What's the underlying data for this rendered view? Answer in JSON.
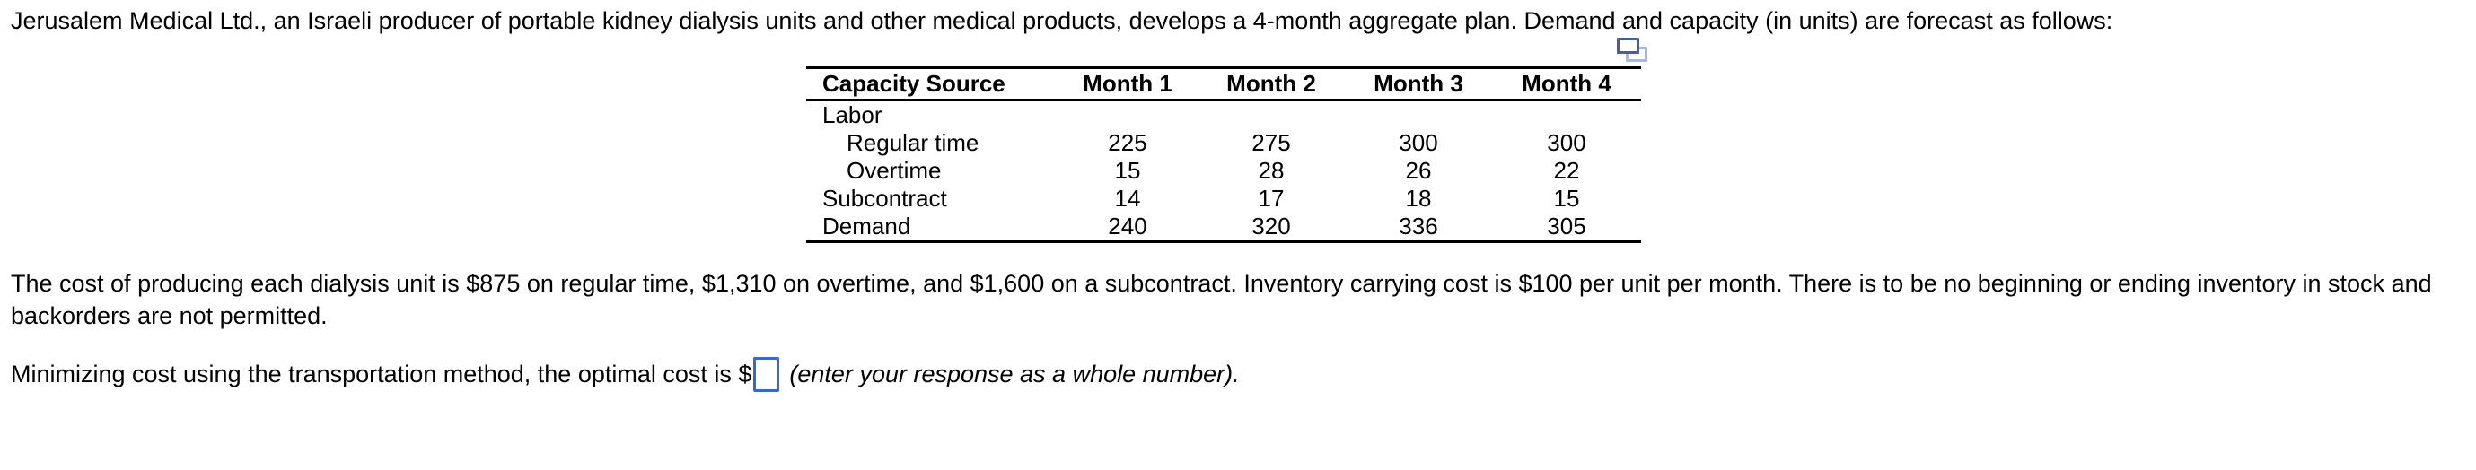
{
  "problem": {
    "intro": "Jerusalem Medical Ltd., an Israeli producer of portable kidney dialysis units and other medical products, develops a 4-month aggregate plan. Demand and capacity (in units) are forecast as follows:",
    "cost_line1": "The cost of producing each dialysis unit is $875 on regular time, $1,310 on overtime, and $1,600 on a subcontract. Inventory carrying cost is $100 per unit per month. There is to be no beginning or ending inventory in stock and",
    "cost_line2": "backorders are not permitted.",
    "question_prefix": "Minimizing cost using the transportation method, the optimal cost is $",
    "question_suffix": "(enter your response as a whole number)."
  },
  "table": {
    "headers": [
      "Capacity Source",
      "Month 1",
      "Month 2",
      "Month 3",
      "Month 4"
    ],
    "rows": [
      {
        "label": "Labor",
        "values": [
          "",
          "",
          "",
          ""
        ]
      },
      {
        "label": "Regular time",
        "values": [
          "225",
          "275",
          "300",
          "300"
        ]
      },
      {
        "label": "Overtime",
        "values": [
          "15",
          "28",
          "26",
          "22"
        ]
      },
      {
        "label": "Subcontract",
        "values": [
          "14",
          "17",
          "18",
          "15"
        ]
      },
      {
        "label": "Demand",
        "values": [
          "240",
          "320",
          "336",
          "305"
        ]
      }
    ]
  },
  "answer": {
    "value": ""
  },
  "icons": {
    "copy": "copy-question-icon"
  },
  "colors": {
    "input_border": "#3b67c5",
    "icon_dark_blue": "#4d5c9b",
    "icon_light_blue": "#aeb7d8",
    "text": "#000000",
    "background": "#ffffff"
  }
}
